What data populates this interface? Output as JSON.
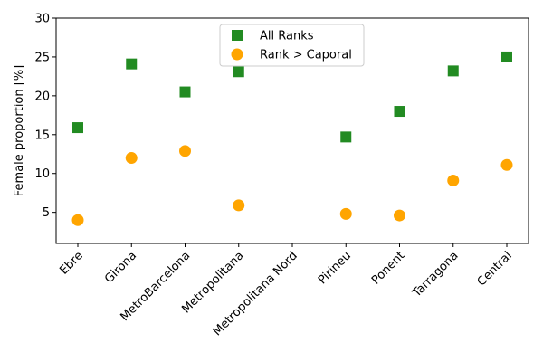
{
  "chart_data": {
    "type": "scatter",
    "title": "",
    "xlabel": "",
    "ylabel": "Female proportion [%]",
    "ylim": [
      1,
      30
    ],
    "yticks": [
      5,
      10,
      15,
      20,
      25,
      30
    ],
    "grid": false,
    "legend_position": "top-center",
    "categories": [
      "Ebre",
      "Girona",
      "MetroBarcelona",
      "Metropolitana",
      "Metropolitana Nord",
      "Pirineu",
      "Ponent",
      "Tarragona",
      "Central"
    ],
    "series": [
      {
        "name": "All Ranks",
        "marker": "square",
        "color": "#228b22",
        "values": [
          15.9,
          24.1,
          20.5,
          23.1,
          null,
          14.7,
          18.0,
          23.2,
          25.0
        ]
      },
      {
        "name": "Rank > Caporal",
        "marker": "circle",
        "color": "#ffa500",
        "values": [
          4.0,
          12.0,
          12.9,
          5.9,
          null,
          4.8,
          4.6,
          9.1,
          11.1
        ]
      }
    ]
  }
}
